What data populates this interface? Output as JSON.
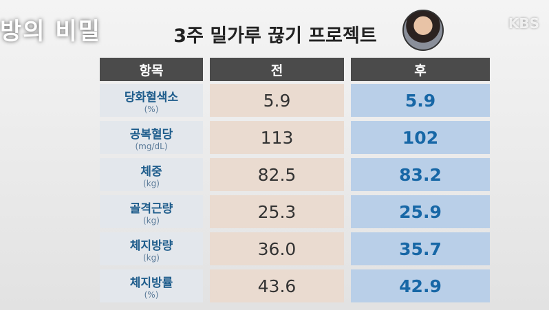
{
  "logo": "방의 비밀",
  "watermark": "KBS",
  "title": "3주 밀가루 끊기 프로젝트",
  "table": {
    "header": [
      "항목",
      "전",
      "후"
    ],
    "rows": [
      {
        "label": "당화혈색소",
        "unit": "(%)",
        "before": "5.9",
        "after": "5.9"
      },
      {
        "label": "공복혈당",
        "unit": "(mg/dL)",
        "before": "113",
        "after": "102"
      },
      {
        "label": "체중",
        "unit": "(kg)",
        "before": "82.5",
        "after": "83.2"
      },
      {
        "label": "골격근량",
        "unit": "(kg)",
        "before": "25.3",
        "after": "25.9"
      },
      {
        "label": "체지방량",
        "unit": "(kg)",
        "before": "36.0",
        "after": "35.7"
      },
      {
        "label": "체지방률",
        "unit": "(%)",
        "before": "43.6",
        "after": "42.9"
      }
    ]
  }
}
